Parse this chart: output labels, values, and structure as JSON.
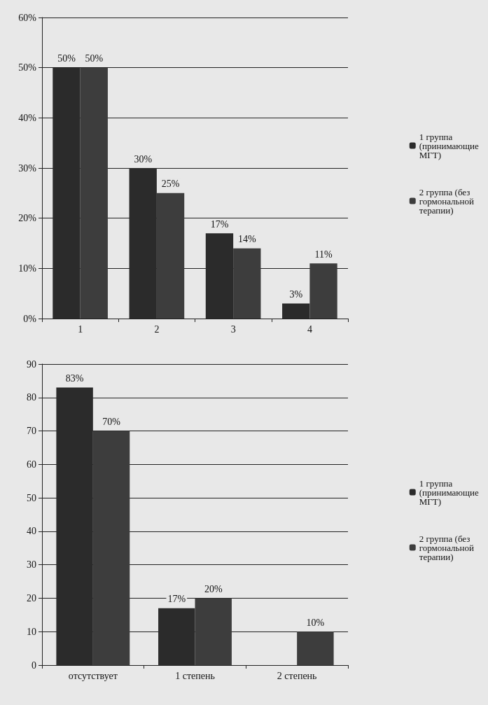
{
  "chart_data": [
    {
      "type": "bar",
      "categories": [
        "1",
        "2",
        "3",
        "4"
      ],
      "series": [
        {
          "name": "1 группа (принимающие МГТ)",
          "color": "#2b2b2b",
          "values": [
            50,
            30,
            17,
            3
          ],
          "value_labels": [
            "50%",
            "30%",
            "17%",
            "3%"
          ]
        },
        {
          "name": "2 группа (без гормональной терапии)",
          "color": "#3d3d3d",
          "values": [
            50,
            25,
            14,
            11
          ],
          "value_labels": [
            "50%",
            "25%",
            "14%",
            "11%"
          ]
        }
      ],
      "ylim": [
        0,
        60
      ],
      "yticks": [
        {
          "value": 0,
          "label": "0%"
        },
        {
          "value": 10,
          "label": "10%"
        },
        {
          "value": 20,
          "label": "20%"
        },
        {
          "value": 30,
          "label": "30%"
        },
        {
          "value": 40,
          "label": "40%"
        },
        {
          "value": 50,
          "label": "50%"
        },
        {
          "value": 60,
          "label": "60%"
        }
      ],
      "grid": "y",
      "legend": "right"
    },
    {
      "type": "bar",
      "categories": [
        "отсутствует",
        "1 степень",
        "2 степень"
      ],
      "series": [
        {
          "name": "1 группа (принимающие МГТ)",
          "color": "#2b2b2b",
          "values": [
            83,
            17,
            null
          ],
          "value_labels": [
            "83%",
            "17%",
            null
          ]
        },
        {
          "name": "2 группа (без гормональной терапии)",
          "color": "#3d3d3d",
          "values": [
            70,
            20,
            10
          ],
          "value_labels": [
            "70%",
            "20%",
            "10%"
          ]
        }
      ],
      "ylim": [
        0,
        90
      ],
      "yticks": [
        0,
        10,
        20,
        30,
        40,
        50,
        60,
        70,
        80,
        90
      ],
      "grid": "y",
      "legend": "right"
    }
  ]
}
